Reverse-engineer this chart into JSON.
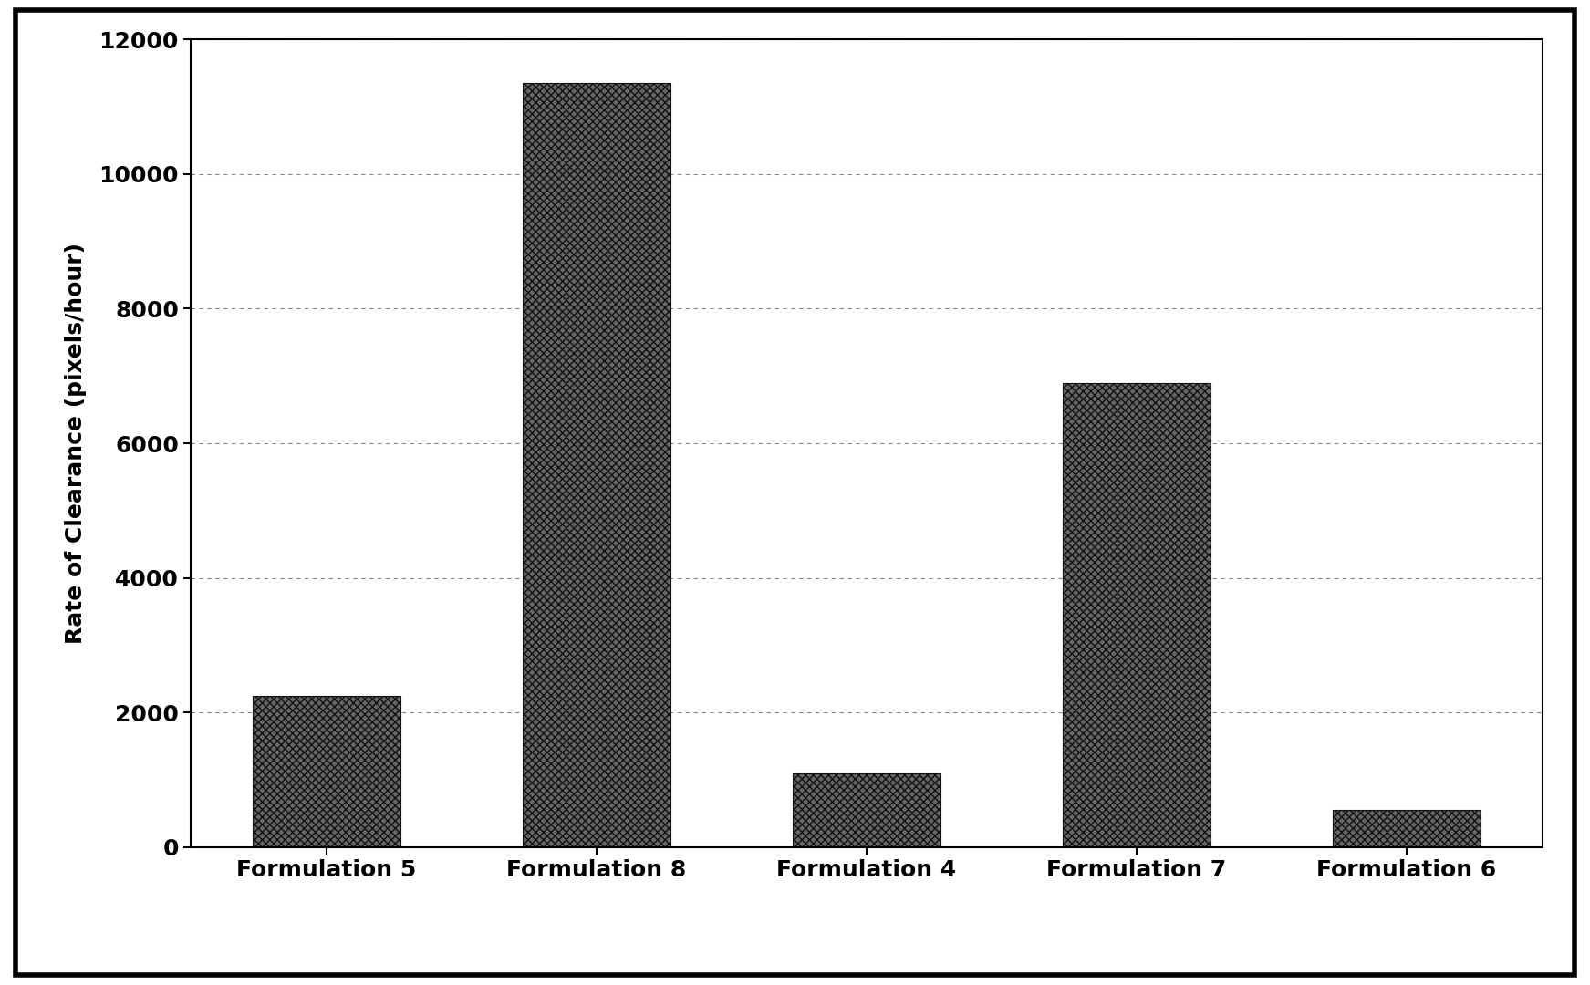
{
  "categories": [
    "Formulation 5",
    "Formulation 8",
    "Formulation 4",
    "Formulation 7",
    "Formulation 6"
  ],
  "values": [
    2250,
    11350,
    1100,
    6900,
    550
  ],
  "bar_color": "#666666",
  "bar_edge_color": "#111111",
  "ylabel": "Rate of Clearance (pixels/hour)",
  "ylim": [
    0,
    12000
  ],
  "yticks": [
    0,
    2000,
    4000,
    6000,
    8000,
    10000,
    12000
  ],
  "plot_bg_color": "#ffffff",
  "grid_color": "#888888",
  "tick_label_fontsize": 18,
  "axis_label_fontsize": 18,
  "bar_width": 0.55,
  "figure_bg_color": "#ffffff",
  "outer_border_color": "#000000"
}
